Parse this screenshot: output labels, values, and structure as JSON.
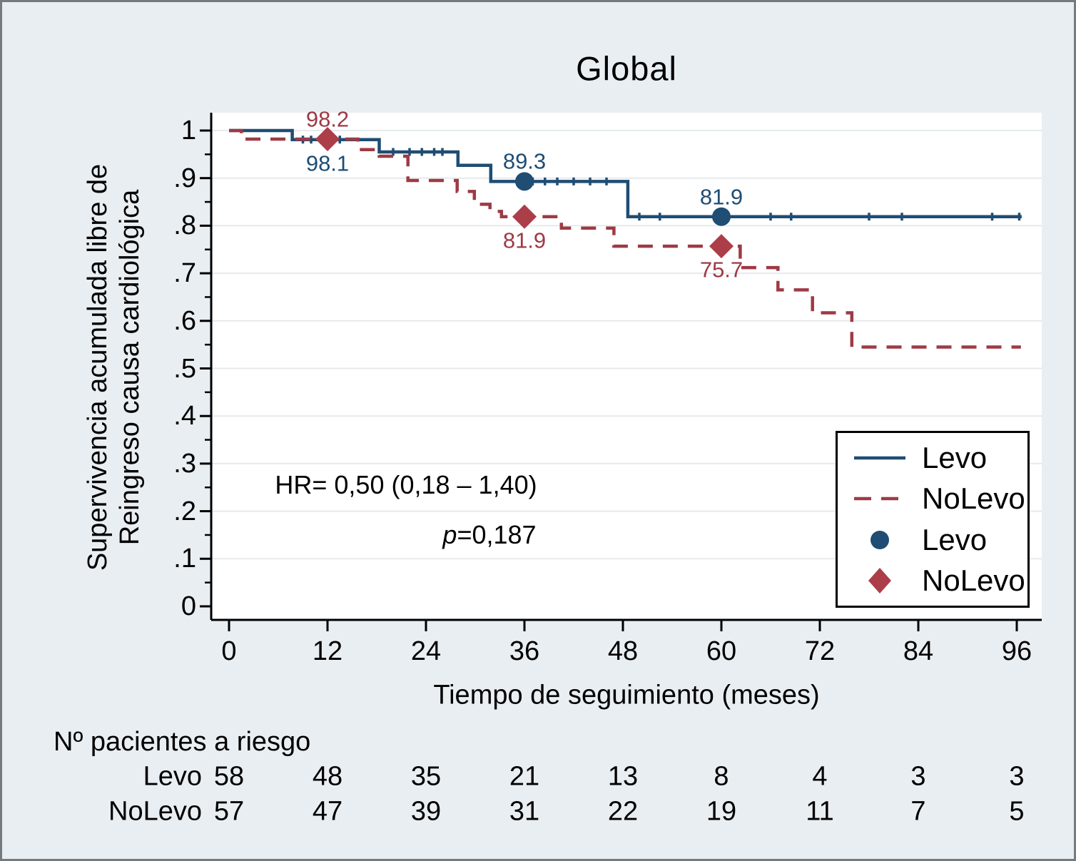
{
  "title": "Global",
  "axes": {
    "x_label": "Tiempo de seguimiento (meses)",
    "y_label_line1": "Supervivencia acumulada libre de",
    "y_label_line2": "Reingreso causa cardiológica"
  },
  "stats": {
    "hr_text": "HR= 0,50  (0,18 – 1,40)",
    "p_label": "p",
    "p_value": "=0,187"
  },
  "legend": {
    "entries": [
      {
        "label": "Levo",
        "symbol": "solid-line"
      },
      {
        "label": "NoLevo",
        "symbol": "dashed-line"
      },
      {
        "label": "Levo",
        "symbol": "circle"
      },
      {
        "label": "NoLevo",
        "symbol": "diamond"
      }
    ]
  },
  "risk_table": {
    "header": "Nº pacientes a riesgo",
    "rows": [
      {
        "label": "Levo",
        "values": [
          "58",
          "48",
          "35",
          "21",
          "13",
          "8",
          "4",
          "3",
          "3"
        ]
      },
      {
        "label": "NoLevo",
        "values": [
          "57",
          "47",
          "39",
          "31",
          "22",
          "19",
          "11",
          "7",
          "5"
        ]
      }
    ]
  },
  "colors": {
    "levo_line": "#1f4d73",
    "levo_marker": "#1f4d73",
    "nolevo_line": "#9e3a45",
    "nolevo_marker": "#ac3e49",
    "background": "#e9eef2",
    "plot_background": "#ffffff",
    "gridline": "#e6eaed",
    "axis": "#000000"
  },
  "chart_data": {
    "type": "line",
    "kind": "kaplan-meier-step",
    "title": "Global",
    "xlabel": "Tiempo de seguimiento (meses)",
    "ylabel": "Supervivencia acumulada libre de Reingreso causa cardiológica",
    "xlim": [
      0,
      96
    ],
    "ylim": [
      0,
      1
    ],
    "grid": true,
    "legend_position": "right-middle",
    "x_ticks": [
      {
        "v": 0,
        "label": "0"
      },
      {
        "v": 12,
        "label": "12"
      },
      {
        "v": 24,
        "label": "24"
      },
      {
        "v": 36,
        "label": "36"
      },
      {
        "v": 48,
        "label": "48"
      },
      {
        "v": 60,
        "label": "60"
      },
      {
        "v": 72,
        "label": "72"
      },
      {
        "v": 84,
        "label": "84"
      },
      {
        "v": 96,
        "label": "96"
      }
    ],
    "y_ticks": [
      {
        "v": 0,
        "label": "0"
      },
      {
        "v": 0.1,
        "label": ".1"
      },
      {
        "v": 0.2,
        "label": ".2"
      },
      {
        "v": 0.3,
        "label": ".3"
      },
      {
        "v": 0.4,
        "label": ".4"
      },
      {
        "v": 0.5,
        "label": ".5"
      },
      {
        "v": 0.6,
        "label": ".6"
      },
      {
        "v": 0.7,
        "label": ".7"
      },
      {
        "v": 0.8,
        "label": ".8"
      },
      {
        "v": 0.9,
        "label": ".9"
      },
      {
        "v": 1,
        "label": "1"
      }
    ],
    "series": [
      {
        "name": "Levo",
        "style": "solid",
        "marker": "circle",
        "steps": [
          [
            0,
            1
          ],
          [
            7.7,
            1
          ],
          [
            7.7,
            0.981
          ],
          [
            18.3,
            0.981
          ],
          [
            18.3,
            0.955
          ],
          [
            27.9,
            0.955
          ],
          [
            27.9,
            0.927
          ],
          [
            31.9,
            0.927
          ],
          [
            31.9,
            0.893
          ],
          [
            48.6,
            0.893
          ],
          [
            48.6,
            0.819
          ],
          [
            96.6,
            0.819
          ]
        ],
        "markers": [
          {
            "t": 36,
            "v": 0.893
          },
          {
            "t": 60,
            "v": 0.819
          }
        ],
        "censor_marks": [
          9,
          10,
          13.5,
          20,
          22,
          23.5,
          25,
          26,
          37,
          38.5,
          40,
          42,
          44,
          46,
          50,
          52.5,
          66,
          68.5,
          78,
          82,
          93,
          96.3
        ]
      },
      {
        "name": "NoLevo",
        "style": "dashed",
        "marker": "diamond",
        "steps": [
          [
            0,
            1
          ],
          [
            1.5,
            1
          ],
          [
            1.5,
            0.982
          ],
          [
            15.7,
            0.982
          ],
          [
            15.7,
            0.96
          ],
          [
            18.3,
            0.96
          ],
          [
            18.3,
            0.946
          ],
          [
            21.8,
            0.946
          ],
          [
            21.8,
            0.895
          ],
          [
            27.8,
            0.895
          ],
          [
            27.8,
            0.872
          ],
          [
            29.9,
            0.872
          ],
          [
            29.9,
            0.845
          ],
          [
            31.8,
            0.845
          ],
          [
            31.8,
            0.83
          ],
          [
            33.2,
            0.83
          ],
          [
            33.2,
            0.819
          ],
          [
            40.5,
            0.819
          ],
          [
            40.5,
            0.795
          ],
          [
            46.9,
            0.795
          ],
          [
            46.9,
            0.757
          ],
          [
            62.3,
            0.757
          ],
          [
            62.3,
            0.712
          ],
          [
            66.9,
            0.712
          ],
          [
            66.9,
            0.665
          ],
          [
            71.1,
            0.665
          ],
          [
            71.1,
            0.617
          ],
          [
            75.9,
            0.617
          ],
          [
            75.9,
            0.545
          ],
          [
            96.5,
            0.545
          ]
        ],
        "markers": [
          {
            "t": 12,
            "v": 0.982
          },
          {
            "t": 36,
            "v": 0.819
          },
          {
            "t": 60,
            "v": 0.757
          }
        ],
        "censor_marks": []
      }
    ],
    "annotations": [
      {
        "series": "NoLevo",
        "t": 12,
        "v": 0.982,
        "text": "98.2",
        "placement": "above"
      },
      {
        "series": "Levo",
        "t": 12,
        "v": 0.981,
        "text": "98.1",
        "placement": "below"
      },
      {
        "series": "Levo",
        "t": 36,
        "v": 0.893,
        "text": "89.3",
        "placement": "above"
      },
      {
        "series": "NoLevo",
        "t": 36,
        "v": 0.819,
        "text": "81.9",
        "placement": "below"
      },
      {
        "series": "Levo",
        "t": 60,
        "v": 0.819,
        "text": "81.9",
        "placement": "above"
      },
      {
        "series": "NoLevo",
        "t": 60,
        "v": 0.757,
        "text": "75.7",
        "placement": "below"
      }
    ],
    "stats_annotations": [
      "HR= 0,50  (0,18 – 1,40)",
      "p=0,187"
    ]
  }
}
